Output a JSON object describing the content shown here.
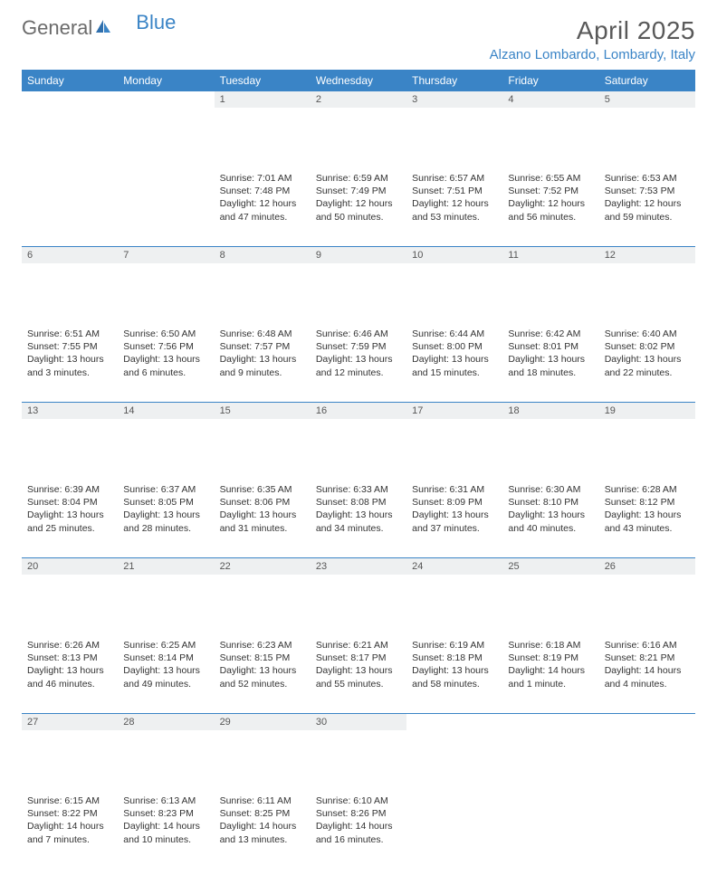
{
  "brand": {
    "name1": "General",
    "name2": "Blue"
  },
  "title": "April 2025",
  "location": "Alzano Lombardo, Lombardy, Italy",
  "colors": {
    "header_bg": "#3a84c6",
    "header_text": "#ffffff",
    "daynum_bg": "#eef0f1",
    "text": "#333333",
    "title_color": "#595959",
    "brand_gray": "#6b6b6b",
    "brand_blue": "#3a84c6"
  },
  "typography": {
    "title_fontsize": 28,
    "location_fontsize": 15,
    "header_fontsize": 12,
    "daynum_fontsize": 11,
    "cell_fontsize": 10.5
  },
  "weekdays": [
    "Sunday",
    "Monday",
    "Tuesday",
    "Wednesday",
    "Thursday",
    "Friday",
    "Saturday"
  ],
  "weeks": [
    {
      "days": [
        {
          "num": "",
          "sunrise": "",
          "sunset": "",
          "daylight": ""
        },
        {
          "num": "",
          "sunrise": "",
          "sunset": "",
          "daylight": ""
        },
        {
          "num": "1",
          "sunrise": "Sunrise: 7:01 AM",
          "sunset": "Sunset: 7:48 PM",
          "daylight": "Daylight: 12 hours and 47 minutes."
        },
        {
          "num": "2",
          "sunrise": "Sunrise: 6:59 AM",
          "sunset": "Sunset: 7:49 PM",
          "daylight": "Daylight: 12 hours and 50 minutes."
        },
        {
          "num": "3",
          "sunrise": "Sunrise: 6:57 AM",
          "sunset": "Sunset: 7:51 PM",
          "daylight": "Daylight: 12 hours and 53 minutes."
        },
        {
          "num": "4",
          "sunrise": "Sunrise: 6:55 AM",
          "sunset": "Sunset: 7:52 PM",
          "daylight": "Daylight: 12 hours and 56 minutes."
        },
        {
          "num": "5",
          "sunrise": "Sunrise: 6:53 AM",
          "sunset": "Sunset: 7:53 PM",
          "daylight": "Daylight: 12 hours and 59 minutes."
        }
      ]
    },
    {
      "days": [
        {
          "num": "6",
          "sunrise": "Sunrise: 6:51 AM",
          "sunset": "Sunset: 7:55 PM",
          "daylight": "Daylight: 13 hours and 3 minutes."
        },
        {
          "num": "7",
          "sunrise": "Sunrise: 6:50 AM",
          "sunset": "Sunset: 7:56 PM",
          "daylight": "Daylight: 13 hours and 6 minutes."
        },
        {
          "num": "8",
          "sunrise": "Sunrise: 6:48 AM",
          "sunset": "Sunset: 7:57 PM",
          "daylight": "Daylight: 13 hours and 9 minutes."
        },
        {
          "num": "9",
          "sunrise": "Sunrise: 6:46 AM",
          "sunset": "Sunset: 7:59 PM",
          "daylight": "Daylight: 13 hours and 12 minutes."
        },
        {
          "num": "10",
          "sunrise": "Sunrise: 6:44 AM",
          "sunset": "Sunset: 8:00 PM",
          "daylight": "Daylight: 13 hours and 15 minutes."
        },
        {
          "num": "11",
          "sunrise": "Sunrise: 6:42 AM",
          "sunset": "Sunset: 8:01 PM",
          "daylight": "Daylight: 13 hours and 18 minutes."
        },
        {
          "num": "12",
          "sunrise": "Sunrise: 6:40 AM",
          "sunset": "Sunset: 8:02 PM",
          "daylight": "Daylight: 13 hours and 22 minutes."
        }
      ]
    },
    {
      "days": [
        {
          "num": "13",
          "sunrise": "Sunrise: 6:39 AM",
          "sunset": "Sunset: 8:04 PM",
          "daylight": "Daylight: 13 hours and 25 minutes."
        },
        {
          "num": "14",
          "sunrise": "Sunrise: 6:37 AM",
          "sunset": "Sunset: 8:05 PM",
          "daylight": "Daylight: 13 hours and 28 minutes."
        },
        {
          "num": "15",
          "sunrise": "Sunrise: 6:35 AM",
          "sunset": "Sunset: 8:06 PM",
          "daylight": "Daylight: 13 hours and 31 minutes."
        },
        {
          "num": "16",
          "sunrise": "Sunrise: 6:33 AM",
          "sunset": "Sunset: 8:08 PM",
          "daylight": "Daylight: 13 hours and 34 minutes."
        },
        {
          "num": "17",
          "sunrise": "Sunrise: 6:31 AM",
          "sunset": "Sunset: 8:09 PM",
          "daylight": "Daylight: 13 hours and 37 minutes."
        },
        {
          "num": "18",
          "sunrise": "Sunrise: 6:30 AM",
          "sunset": "Sunset: 8:10 PM",
          "daylight": "Daylight: 13 hours and 40 minutes."
        },
        {
          "num": "19",
          "sunrise": "Sunrise: 6:28 AM",
          "sunset": "Sunset: 8:12 PM",
          "daylight": "Daylight: 13 hours and 43 minutes."
        }
      ]
    },
    {
      "days": [
        {
          "num": "20",
          "sunrise": "Sunrise: 6:26 AM",
          "sunset": "Sunset: 8:13 PM",
          "daylight": "Daylight: 13 hours and 46 minutes."
        },
        {
          "num": "21",
          "sunrise": "Sunrise: 6:25 AM",
          "sunset": "Sunset: 8:14 PM",
          "daylight": "Daylight: 13 hours and 49 minutes."
        },
        {
          "num": "22",
          "sunrise": "Sunrise: 6:23 AM",
          "sunset": "Sunset: 8:15 PM",
          "daylight": "Daylight: 13 hours and 52 minutes."
        },
        {
          "num": "23",
          "sunrise": "Sunrise: 6:21 AM",
          "sunset": "Sunset: 8:17 PM",
          "daylight": "Daylight: 13 hours and 55 minutes."
        },
        {
          "num": "24",
          "sunrise": "Sunrise: 6:19 AM",
          "sunset": "Sunset: 8:18 PM",
          "daylight": "Daylight: 13 hours and 58 minutes."
        },
        {
          "num": "25",
          "sunrise": "Sunrise: 6:18 AM",
          "sunset": "Sunset: 8:19 PM",
          "daylight": "Daylight: 14 hours and 1 minute."
        },
        {
          "num": "26",
          "sunrise": "Sunrise: 6:16 AM",
          "sunset": "Sunset: 8:21 PM",
          "daylight": "Daylight: 14 hours and 4 minutes."
        }
      ]
    },
    {
      "days": [
        {
          "num": "27",
          "sunrise": "Sunrise: 6:15 AM",
          "sunset": "Sunset: 8:22 PM",
          "daylight": "Daylight: 14 hours and 7 minutes."
        },
        {
          "num": "28",
          "sunrise": "Sunrise: 6:13 AM",
          "sunset": "Sunset: 8:23 PM",
          "daylight": "Daylight: 14 hours and 10 minutes."
        },
        {
          "num": "29",
          "sunrise": "Sunrise: 6:11 AM",
          "sunset": "Sunset: 8:25 PM",
          "daylight": "Daylight: 14 hours and 13 minutes."
        },
        {
          "num": "30",
          "sunrise": "Sunrise: 6:10 AM",
          "sunset": "Sunset: 8:26 PM",
          "daylight": "Daylight: 14 hours and 16 minutes."
        },
        {
          "num": "",
          "sunrise": "",
          "sunset": "",
          "daylight": ""
        },
        {
          "num": "",
          "sunrise": "",
          "sunset": "",
          "daylight": ""
        },
        {
          "num": "",
          "sunrise": "",
          "sunset": "",
          "daylight": ""
        }
      ]
    }
  ]
}
